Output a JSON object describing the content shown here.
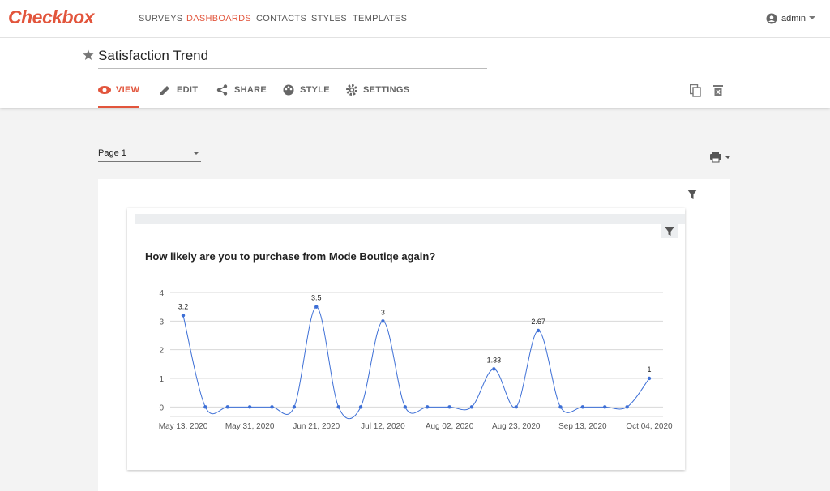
{
  "nav": {
    "logo": "Checkbox",
    "items": [
      "SURVEYS",
      "DASHBOARDS",
      "CONTACTS",
      "STYLES",
      "TEMPLATES"
    ],
    "user": "admin"
  },
  "header": {
    "title": "Satisfaction Trend",
    "tabs": [
      "VIEW",
      "EDIT",
      "SHARE",
      "STYLE",
      "SETTINGS"
    ]
  },
  "page_select": "Page 1",
  "chart_data": {
    "type": "line",
    "title": "How likely are you to purchase from Mode Boutiqe again?",
    "categories": [
      "May 13, 2020",
      null,
      null,
      "May 31, 2020",
      null,
      null,
      "Jun 21, 2020",
      null,
      null,
      "Jul 12, 2020",
      null,
      null,
      "Aug 02, 2020",
      null,
      null,
      "Aug 23, 2020",
      null,
      null,
      "Sep 13, 2020",
      null,
      null,
      "Oct 04, 2020"
    ],
    "values": [
      3.2,
      0,
      0,
      0,
      0,
      0,
      3.5,
      0,
      0,
      3,
      0,
      0,
      0,
      0,
      1.33,
      0,
      2.67,
      0,
      0,
      0,
      0,
      1
    ],
    "value_labels": [
      "3.2",
      null,
      null,
      null,
      null,
      null,
      "3.5",
      null,
      null,
      "3",
      null,
      null,
      null,
      null,
      "1.33",
      null,
      "2.67",
      null,
      null,
      null,
      null,
      "1"
    ],
    "color": "#3d6fd6",
    "ylim": [
      -0.5,
      4
    ],
    "yticks": [
      0,
      1,
      2,
      3,
      4
    ],
    "grid": true
  }
}
